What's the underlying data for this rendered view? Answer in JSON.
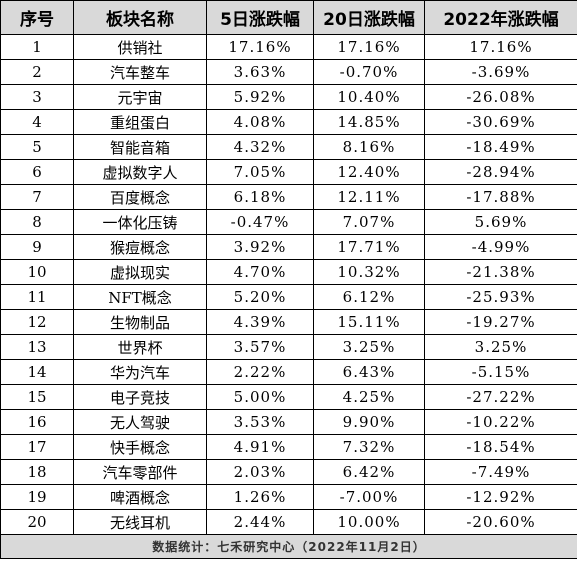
{
  "table": {
    "headers": [
      "序号",
      "板块名称",
      "5日涨跌幅",
      "20日涨跌幅",
      "2022年涨跌幅"
    ],
    "rows": [
      [
        "1",
        "供销社",
        "17.16%",
        "17.16%",
        "17.16%"
      ],
      [
        "2",
        "汽车整车",
        "3.63%",
        "-0.70%",
        "-3.69%"
      ],
      [
        "3",
        "元宇宙",
        "5.92%",
        "10.40%",
        "-26.08%"
      ],
      [
        "4",
        "重组蛋白",
        "4.08%",
        "14.85%",
        "-30.69%"
      ],
      [
        "5",
        "智能音箱",
        "4.32%",
        "8.16%",
        "-18.49%"
      ],
      [
        "6",
        "虚拟数字人",
        "7.05%",
        "12.40%",
        "-28.94%"
      ],
      [
        "7",
        "百度概念",
        "6.18%",
        "12.11%",
        "-17.88%"
      ],
      [
        "8",
        "一体化压铸",
        "-0.47%",
        "7.07%",
        "5.69%"
      ],
      [
        "9",
        "猴痘概念",
        "3.92%",
        "17.71%",
        "-4.99%"
      ],
      [
        "10",
        "虚拟现实",
        "4.70%",
        "10.32%",
        "-21.38%"
      ],
      [
        "11",
        "NFT概念",
        "5.20%",
        "6.12%",
        "-25.93%"
      ],
      [
        "12",
        "生物制品",
        "4.39%",
        "15.11%",
        "-19.27%"
      ],
      [
        "13",
        "世界杯",
        "3.57%",
        "3.25%",
        "3.25%"
      ],
      [
        "14",
        "华为汽车",
        "2.22%",
        "6.43%",
        "-5.15%"
      ],
      [
        "15",
        "电子竞技",
        "5.00%",
        "4.25%",
        "-27.22%"
      ],
      [
        "16",
        "无人驾驶",
        "3.53%",
        "9.90%",
        "-10.22%"
      ],
      [
        "17",
        "快手概念",
        "4.91%",
        "7.32%",
        "-18.54%"
      ],
      [
        "18",
        "汽车零部件",
        "2.03%",
        "6.42%",
        "-7.49%"
      ],
      [
        "19",
        "啤酒概念",
        "1.26%",
        "-7.00%",
        "-12.92%"
      ],
      [
        "20",
        "无线耳机",
        "2.44%",
        "10.00%",
        "-20.60%"
      ]
    ],
    "footer": "数据统计：七禾研究中心（2022年11月2日）"
  }
}
